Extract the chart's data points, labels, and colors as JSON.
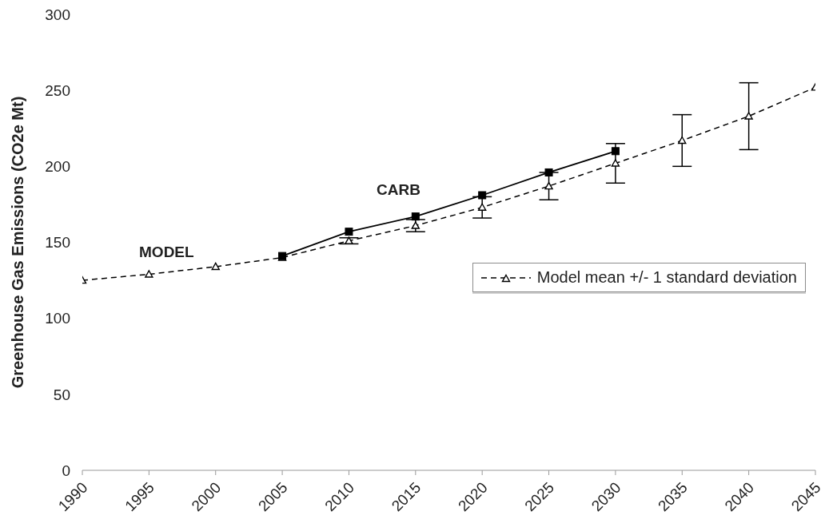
{
  "chart_data": {
    "type": "line",
    "ylabel": "Greenhouse Gas Emissions (CO2e Mt)",
    "x": [
      1990,
      1995,
      2000,
      2005,
      2010,
      2015,
      2020,
      2025,
      2030,
      2035,
      2040,
      2045
    ],
    "series": [
      {
        "name": "Model mean +/- 1 standard deviation",
        "color": "#000000",
        "marker": "triangle",
        "line_style": "dashed",
        "values": [
          125,
          129,
          134,
          140,
          151,
          161,
          173,
          187,
          202,
          217,
          233,
          252
        ],
        "errors": [
          null,
          null,
          null,
          null,
          2,
          4,
          7,
          9,
          13,
          17,
          22,
          null
        ]
      },
      {
        "color": "#000000",
        "marker": "square",
        "line_style": "solid",
        "x": [
          2005,
          2010,
          2015,
          2020,
          2025,
          2030
        ],
        "values": [
          141,
          157,
          167,
          181,
          196,
          210
        ]
      }
    ],
    "xlim": [
      1990,
      2045
    ],
    "xticks": [
      1990,
      1995,
      2000,
      2005,
      2010,
      2015,
      2020,
      2025,
      2030,
      2035,
      2040,
      2045
    ],
    "ylim": [
      0,
      300
    ],
    "yticks": [
      0,
      50,
      100,
      150,
      200,
      250,
      300
    ],
    "legend": "right",
    "annotations": [
      "MODEL",
      "CARB"
    ]
  }
}
